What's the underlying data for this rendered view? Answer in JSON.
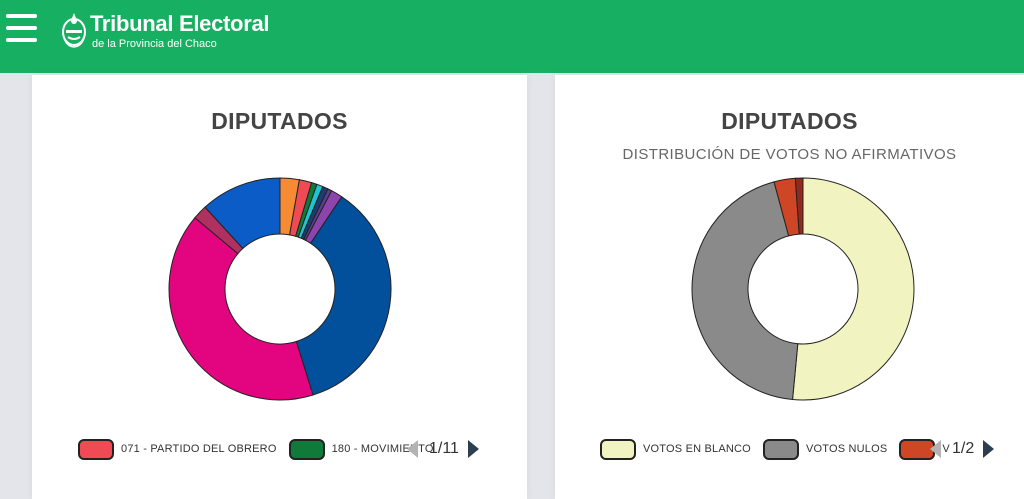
{
  "header": {
    "title": "Tribunal Electoral",
    "subtitle": "de la Provincia del Chaco",
    "bg_color": "#17b062"
  },
  "chart_data": [
    {
      "type": "donut",
      "title": "DIPUTADOS",
      "subtitle": "",
      "slices": [
        {
          "label": "",
          "value": 2.8,
          "color": "#f68b33"
        },
        {
          "label": "071 - PARTIDO DEL OBRERO",
          "value": 1.8,
          "color": "#f04a54"
        },
        {
          "label": "180 - MOVIMIENTO",
          "value": 0.8,
          "color": "#0f7a3a"
        },
        {
          "label": "",
          "value": 0.9,
          "color": "#20c4d0"
        },
        {
          "label": "",
          "value": 0.8,
          "color": "#1d3c73"
        },
        {
          "label": "",
          "value": 0.6,
          "color": "#5a3d8f"
        },
        {
          "label": "",
          "value": 1.7,
          "color": "#8e44ad"
        },
        {
          "label": "",
          "value": 35.8,
          "color": "#02509b"
        },
        {
          "label": "",
          "value": 40.9,
          "color": "#e3047f"
        },
        {
          "label": "",
          "value": 2.1,
          "color": "#b03060"
        },
        {
          "label": "",
          "value": 11.8,
          "color": "#0b5cc6"
        }
      ],
      "legend": {
        "page": "1/11"
      }
    },
    {
      "type": "donut",
      "title": "DIPUTADOS",
      "subtitle": "DISTRIBUCIÓN DE VOTOS NO AFIRMATIVOS",
      "slices": [
        {
          "label": "VOTOS EN BLANCO",
          "value": 51.5,
          "color": "#f1f3c0"
        },
        {
          "label": "VOTOS NULOS",
          "value": 44.3,
          "color": "#8a8a8a"
        },
        {
          "label": "V",
          "value": 3.1,
          "color": "#cf4626"
        },
        {
          "label": "",
          "value": 1.1,
          "color": "#8f2a1d"
        }
      ],
      "legend": {
        "page": "1/2"
      }
    }
  ]
}
